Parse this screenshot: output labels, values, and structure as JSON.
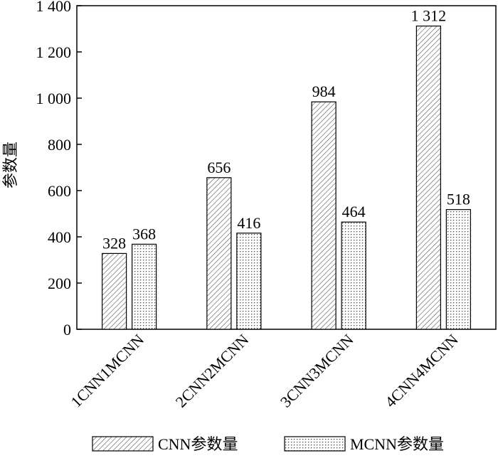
{
  "chart_data": {
    "type": "bar",
    "y_label": "参数量",
    "categories": [
      "1CNN1MCNN",
      "2CNN2MCNN",
      "3CNN3MCNN",
      "4CNN4MCNN"
    ],
    "series": [
      {
        "name": "CNN参数量",
        "color": "#000000",
        "pattern": "hatch",
        "values": [
          328,
          656,
          984,
          1312
        ],
        "value_labels": [
          "328",
          "656",
          "984",
          "1 312"
        ]
      },
      {
        "name": "MCNN参数量",
        "color": "#000000",
        "pattern": "dots",
        "values": [
          368,
          416,
          464,
          518
        ]
      }
    ],
    "ylim": [
      0,
      1400
    ],
    "yticks": [
      0,
      200,
      400,
      600,
      800,
      {
        "value": 1000,
        "label": "1 000"
      },
      {
        "value": 1200,
        "label": "1 200"
      },
      {
        "value": 1400,
        "label": "1 400"
      }
    ],
    "legend": "bottom"
  }
}
